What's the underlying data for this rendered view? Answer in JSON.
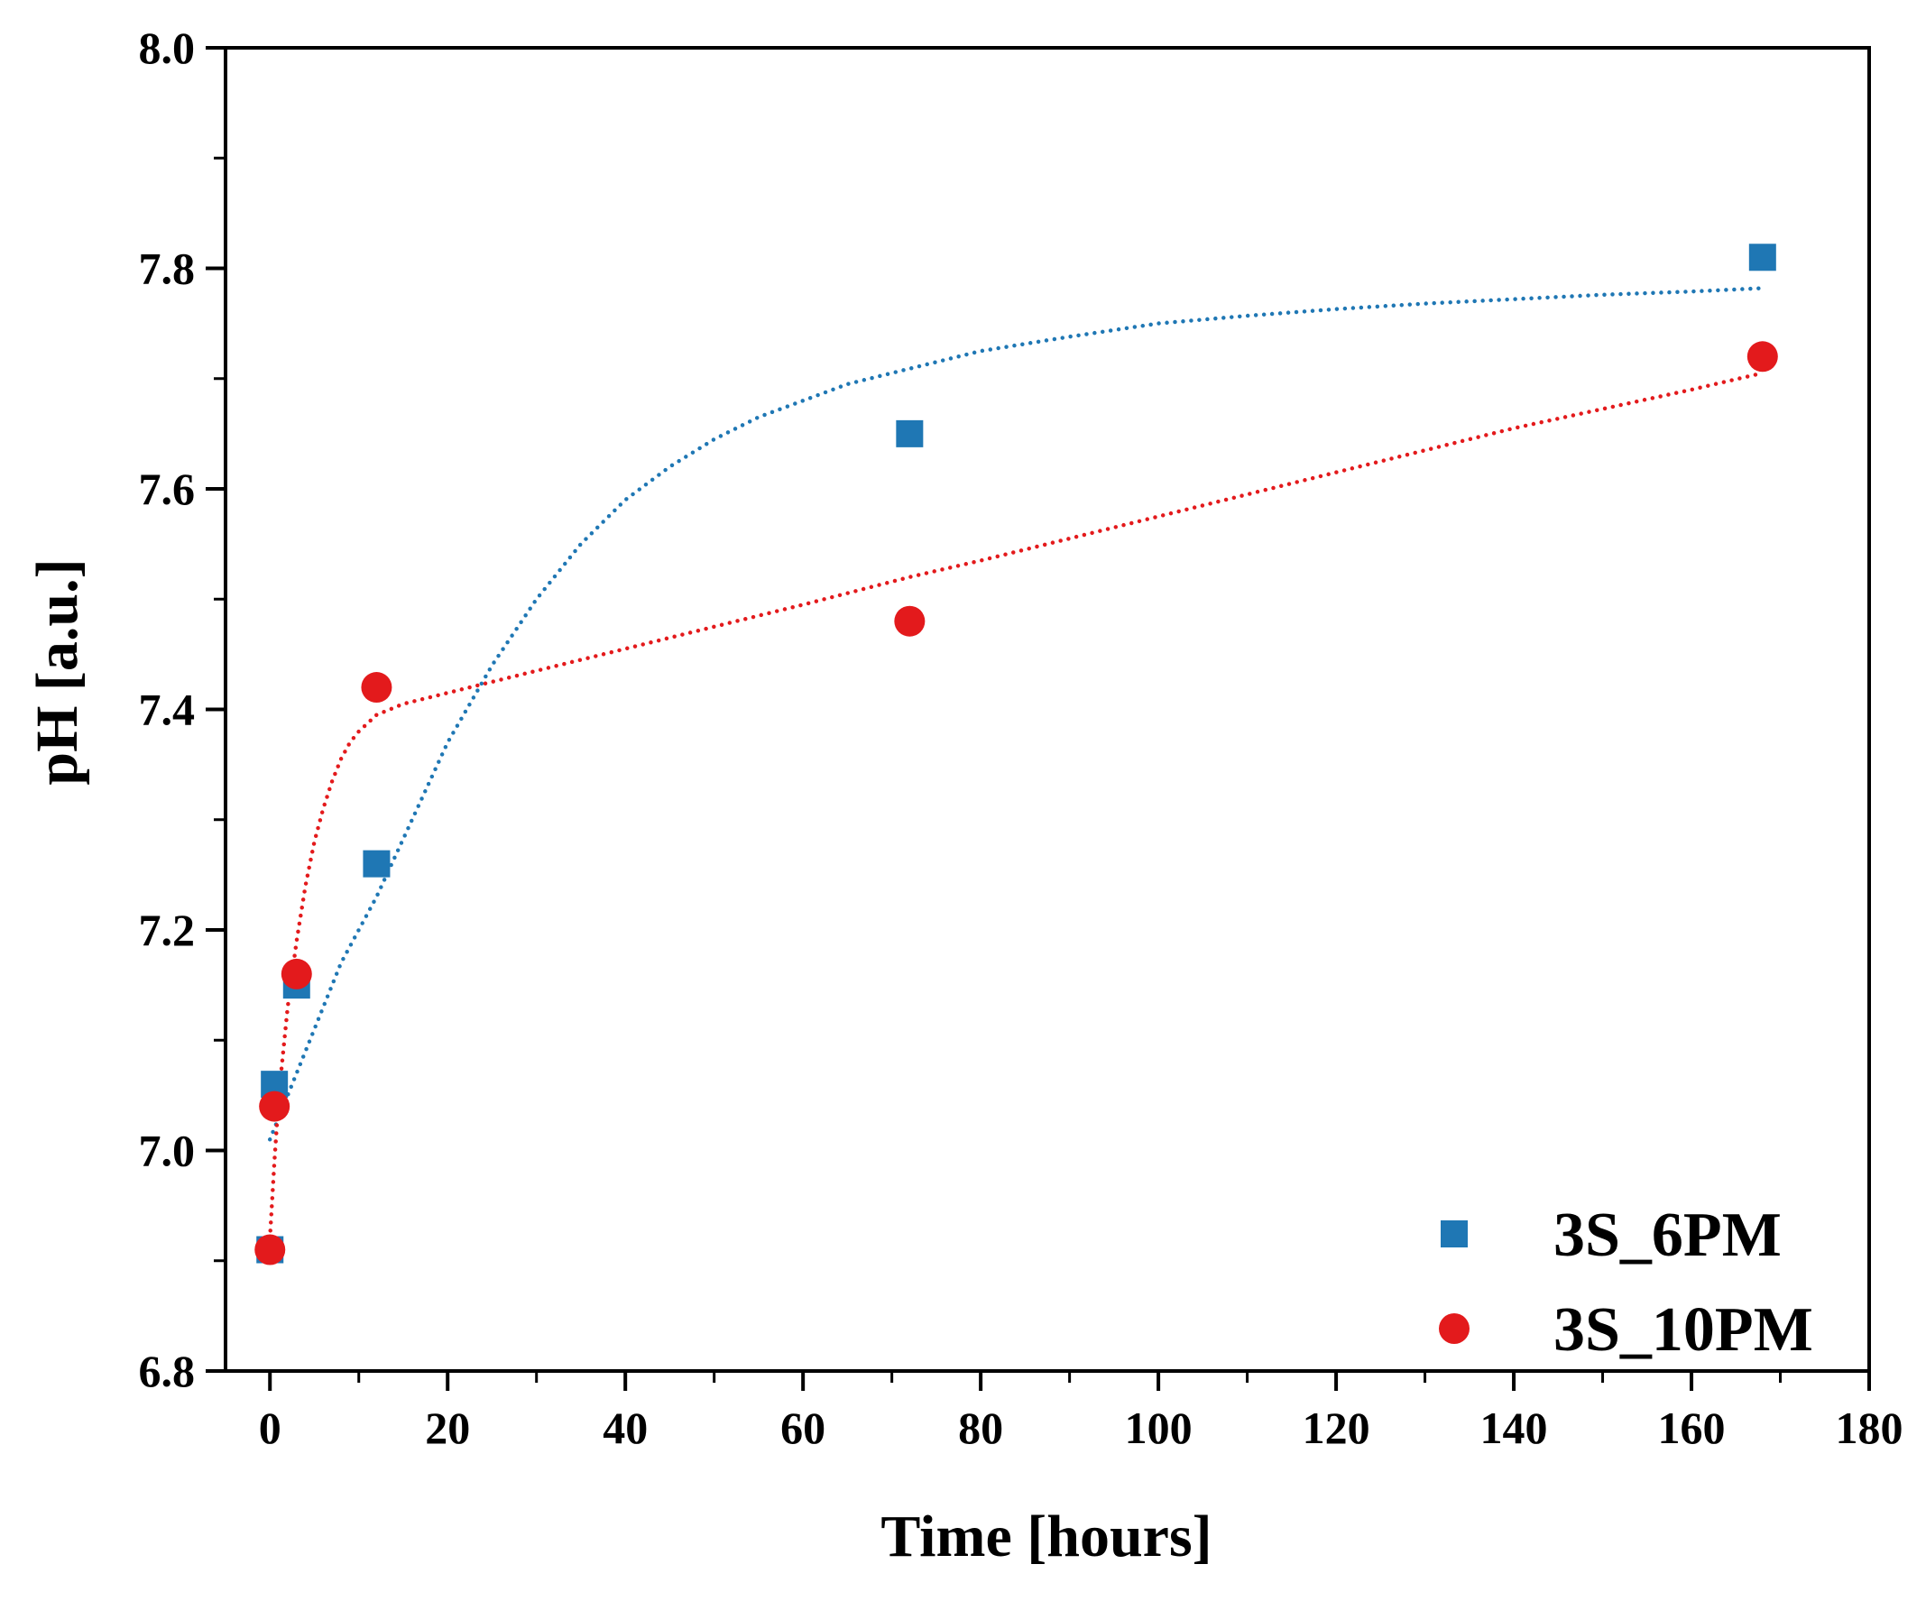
{
  "chart_data": {
    "type": "scatter",
    "title": "",
    "xlabel": "Time [hours]",
    "ylabel": "pH [a.u.]",
    "xlim": [
      -5,
      180
    ],
    "ylim": [
      6.8,
      8.0
    ],
    "xticks": [
      0,
      20,
      40,
      60,
      80,
      100,
      120,
      140,
      160,
      180
    ],
    "xtick_labels": [
      "0",
      "20",
      "40",
      "60",
      "80",
      "100",
      "120",
      "140",
      "160",
      "180"
    ],
    "yticks": [
      6.8,
      7.0,
      7.2,
      7.4,
      7.6,
      7.8,
      8.0
    ],
    "ytick_labels": [
      "6.8",
      "7.0",
      "7.2",
      "7.4",
      "7.6",
      "7.8",
      "8.0"
    ],
    "legend_position": "bottom-right",
    "series": [
      {
        "name": "3S_6PM",
        "marker": "square",
        "color": "#1f77b4",
        "x": [
          0,
          0.5,
          3,
          12,
          72,
          168
        ],
        "y": [
          6.91,
          7.06,
          7.15,
          7.26,
          7.65,
          7.81
        ],
        "trend": {
          "style": "dotted",
          "x": [
            0,
            2,
            5,
            8,
            12,
            16,
            20,
            25,
            30,
            35,
            40,
            45,
            50,
            55,
            60,
            65,
            70,
            75,
            80,
            90,
            100,
            110,
            120,
            130,
            140,
            150,
            160,
            168
          ],
          "y": [
            7.01,
            7.05,
            7.11,
            7.17,
            7.23,
            7.3,
            7.37,
            7.44,
            7.5,
            7.55,
            7.59,
            7.62,
            7.645,
            7.665,
            7.68,
            7.695,
            7.705,
            7.715,
            7.725,
            7.738,
            7.75,
            7.757,
            7.763,
            7.768,
            7.772,
            7.776,
            7.779,
            7.782
          ]
        }
      },
      {
        "name": "3S_10PM",
        "marker": "circle",
        "color": "#e31a1c",
        "x": [
          0,
          0.5,
          3,
          12,
          72,
          168
        ],
        "y": [
          6.91,
          7.04,
          7.16,
          7.42,
          7.48,
          7.72
        ],
        "trend": {
          "style": "dotted",
          "x": [
            0,
            0.5,
            1,
            2,
            3,
            4,
            5,
            6,
            7,
            8,
            9,
            10,
            12,
            15,
            20,
            30,
            40,
            50,
            60,
            72,
            80,
            100,
            120,
            140,
            160,
            168
          ],
          "y": [
            6.92,
            6.99,
            7.05,
            7.13,
            7.19,
            7.24,
            7.28,
            7.31,
            7.335,
            7.355,
            7.37,
            7.38,
            7.395,
            7.405,
            7.415,
            7.435,
            7.455,
            7.475,
            7.495,
            7.52,
            7.535,
            7.575,
            7.615,
            7.655,
            7.69,
            7.705
          ]
        }
      }
    ]
  }
}
